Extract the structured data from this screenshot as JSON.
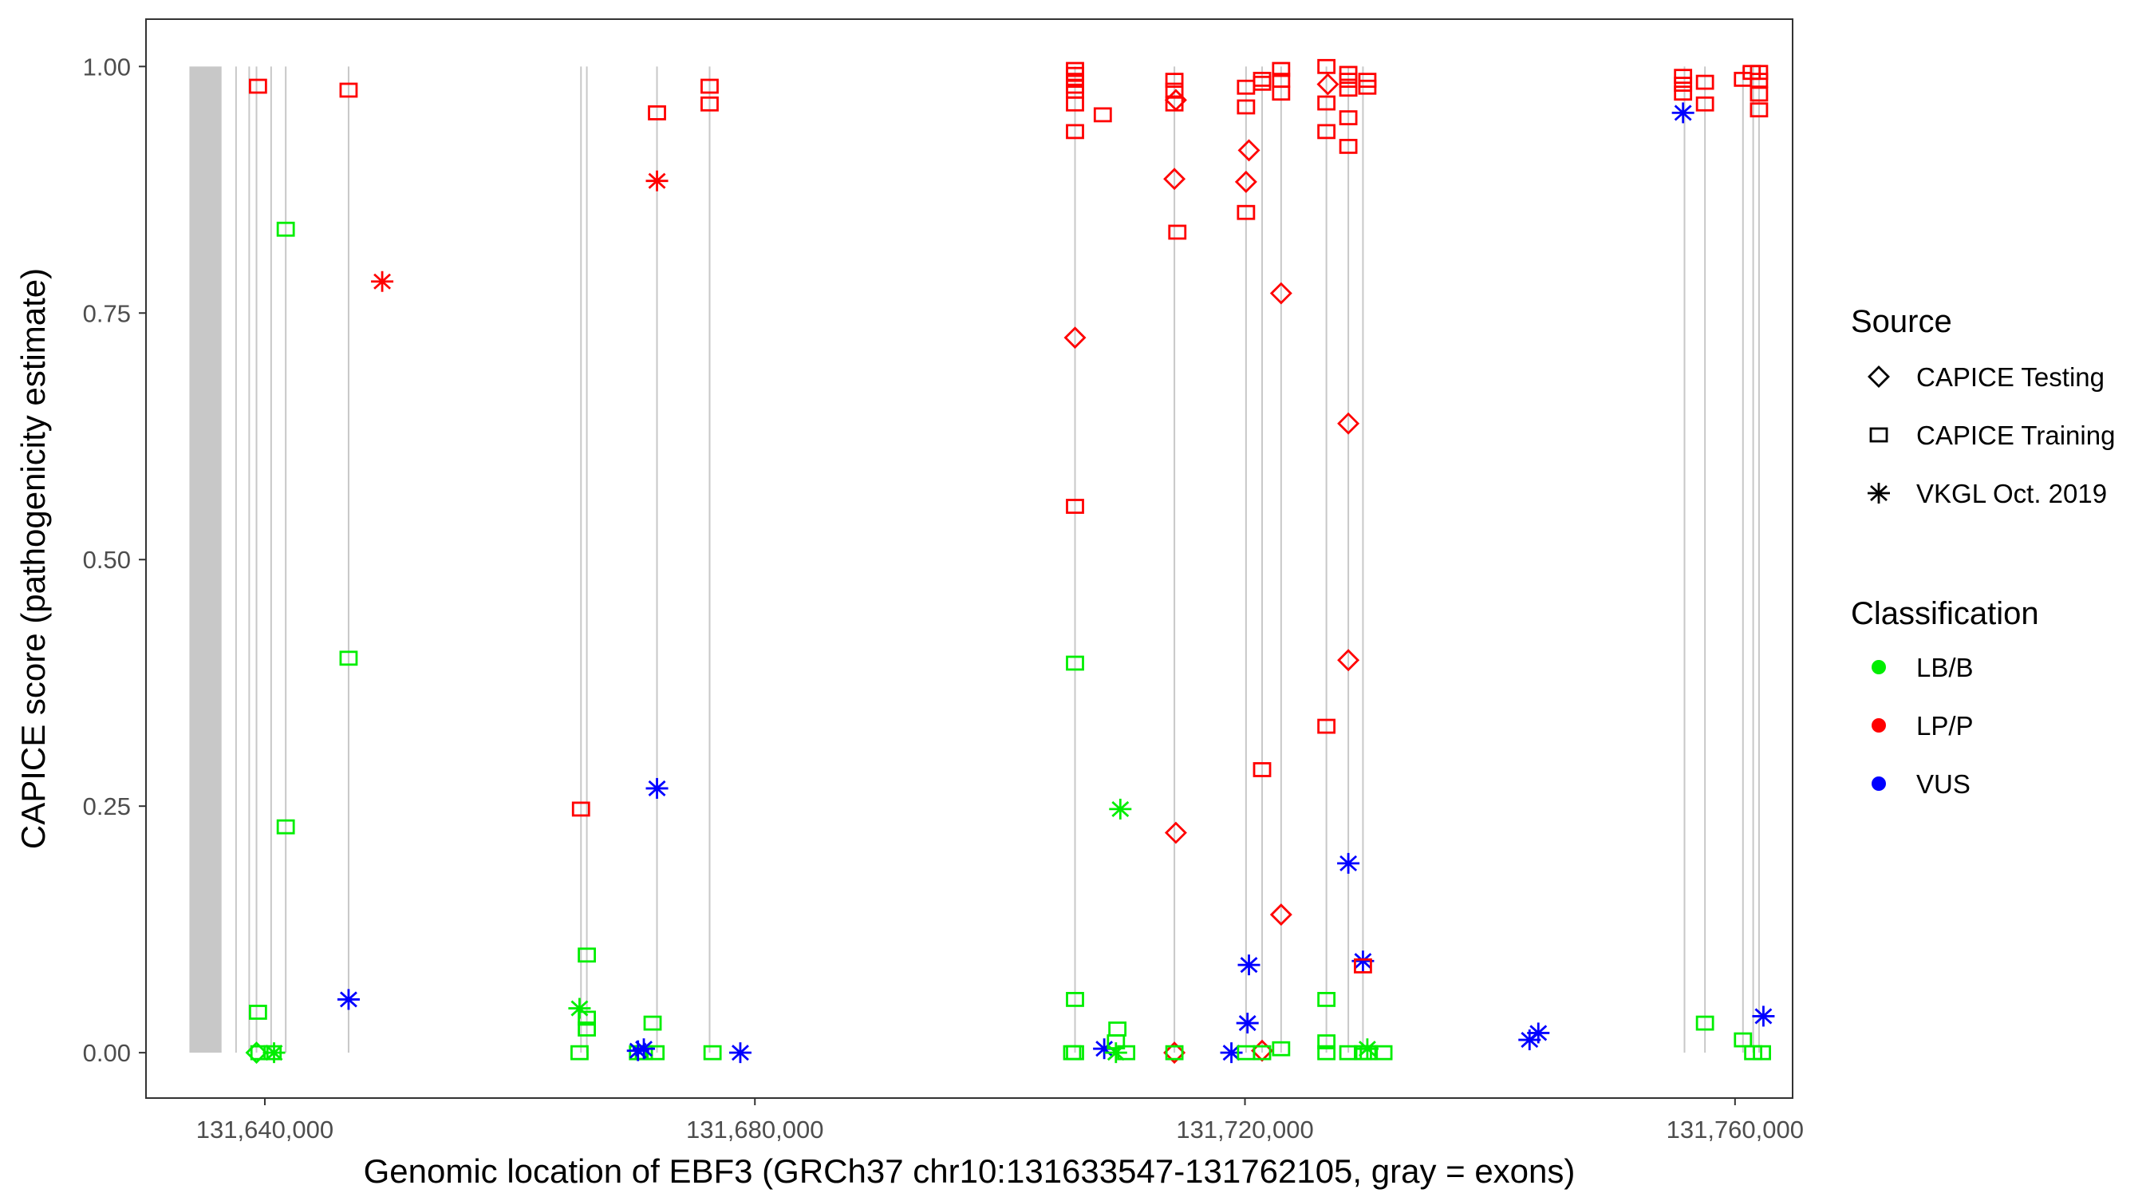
{
  "chart_data": {
    "type": "scatter",
    "xlabel": "Genomic location of EBF3 (GRCh37 chr10:131633547-131762105, gray = exons)",
    "ylabel": "CAPICE score (pathogenicity estimate)",
    "xlim": [
      131630300,
      131764700
    ],
    "ylim": [
      -0.046,
      1.048
    ],
    "x_ticks": [
      131640000,
      131680000,
      131720000,
      131760000
    ],
    "x_tick_labels": [
      "131,640,000",
      "131,680,000",
      "131,720,000",
      "131,760,000"
    ],
    "y_ticks": [
      0,
      0.25,
      0.5,
      0.75,
      1.0
    ],
    "y_tick_labels": [
      "0.00",
      "0.25",
      "0.50",
      "0.75",
      "1.00"
    ],
    "grid": false,
    "legend_placement": "right",
    "legend": {
      "source_title": "Source",
      "sources": [
        {
          "key": "Testing",
          "label": "CAPICE Testing",
          "shape": "diamond"
        },
        {
          "key": "Training",
          "label": "CAPICE Training",
          "shape": "square"
        },
        {
          "key": "VKGL",
          "label": "VKGL Oct. 2019",
          "shape": "asterisk"
        }
      ],
      "class_title": "Classification",
      "classes": [
        {
          "key": "LB/B",
          "label": "LB/B",
          "color": "#00ee00"
        },
        {
          "key": "LP/P",
          "label": "LP/P",
          "color": "#ff0000"
        },
        {
          "key": "VUS",
          "label": "VUS",
          "color": "#0000ff"
        }
      ]
    },
    "exon_band": [
      131633844,
      131636468
    ],
    "exon_lines": [
      131637650,
      131638724,
      131639320,
      131640513,
      131641706,
      131646836,
      131665805,
      131666282,
      131672009,
      131676303,
      131706128,
      131714241,
      131720087,
      131721399,
      131722950,
      131726648,
      131728437,
      131729630,
      131755876,
      131757546,
      131760648,
      131761483,
      131761960
    ],
    "points": [
      [
        131639440,
        0.98,
        "Training",
        "LP/P"
      ],
      [
        131639440,
        0.041,
        "Training",
        "LB/B"
      ],
      [
        131639320,
        0.0,
        "Testing",
        "LB/B"
      ],
      [
        131639559,
        0.0,
        "Training",
        "LB/B"
      ],
      [
        131640632,
        0.0,
        "Training",
        "LB/B"
      ],
      [
        131640752,
        0.0,
        "VKGL",
        "LB/B"
      ],
      [
        131641706,
        0.835,
        "Training",
        "LB/B"
      ],
      [
        131641706,
        0.229,
        "Training",
        "LB/B"
      ],
      [
        131646836,
        0.976,
        "Training",
        "LP/P"
      ],
      [
        131646836,
        0.4,
        "Training",
        "LB/B"
      ],
      [
        131646836,
        0.054,
        "VKGL",
        "VUS"
      ],
      [
        131649580,
        0.782,
        "VKGL",
        "LP/P"
      ],
      [
        131665805,
        0.247,
        "Training",
        "LP/P"
      ],
      [
        131665686,
        0.045,
        "VKGL",
        "LB/B"
      ],
      [
        131666282,
        0.099,
        "Training",
        "LB/B"
      ],
      [
        131666282,
        0.035,
        "Training",
        "LB/B"
      ],
      [
        131666282,
        0.024,
        "Training",
        "LB/B"
      ],
      [
        131665686,
        0.0,
        "Training",
        "LB/B"
      ],
      [
        131672009,
        0.953,
        "Training",
        "LP/P"
      ],
      [
        131672009,
        0.884,
        "VKGL",
        "LP/P"
      ],
      [
        131672009,
        0.268,
        "VKGL",
        "VUS"
      ],
      [
        131671651,
        0.03,
        "Training",
        "LB/B"
      ],
      [
        131670458,
        0.0,
        "Training",
        "LB/B"
      ],
      [
        131670935,
        0.0,
        "Training",
        "LB/B"
      ],
      [
        131671889,
        0.0,
        "Training",
        "LB/B"
      ],
      [
        131670458,
        0.002,
        "VKGL",
        "VUS"
      ],
      [
        131670935,
        0.004,
        "VKGL",
        "VUS"
      ],
      [
        131676303,
        0.98,
        "Training",
        "LP/P"
      ],
      [
        131676303,
        0.962,
        "Training",
        "LP/P"
      ],
      [
        131676542,
        0.0,
        "Training",
        "LB/B"
      ],
      [
        131678809,
        0.0,
        "VKGL",
        "VUS"
      ],
      [
        131706128,
        0.997,
        "Training",
        "LP/P"
      ],
      [
        131706128,
        0.992,
        "Training",
        "LP/P"
      ],
      [
        131706128,
        0.986,
        "Training",
        "LP/P"
      ],
      [
        131706128,
        0.98,
        "Training",
        "LP/P"
      ],
      [
        131706128,
        0.975,
        "Training",
        "LP/P"
      ],
      [
        131706128,
        0.962,
        "Training",
        "LP/P"
      ],
      [
        131706128,
        0.934,
        "Training",
        "LP/P"
      ],
      [
        131706128,
        0.725,
        "Testing",
        "LP/P"
      ],
      [
        131706128,
        0.554,
        "Training",
        "LP/P"
      ],
      [
        131706128,
        0.395,
        "Training",
        "LB/B"
      ],
      [
        131706128,
        0.054,
        "Training",
        "LB/B"
      ],
      [
        131706128,
        0.0,
        "Training",
        "LB/B"
      ],
      [
        131705900,
        0.0,
        "Training",
        "LB/B"
      ],
      [
        131708395,
        0.951,
        "Training",
        "LP/P"
      ],
      [
        131709588,
        0.024,
        "Training",
        "LB/B"
      ],
      [
        131709827,
        0.247,
        "VKGL",
        "LB/B"
      ],
      [
        131708514,
        0.004,
        "VKGL",
        "VUS"
      ],
      [
        131709469,
        0.011,
        "Training",
        "LB/B"
      ],
      [
        131710304,
        0.0,
        "Training",
        "LB/B"
      ],
      [
        131709469,
        0.0,
        "VKGL",
        "LB/B"
      ],
      [
        131714241,
        0.986,
        "Training",
        "LP/P"
      ],
      [
        131714241,
        0.976,
        "Training",
        "LP/P"
      ],
      [
        131714241,
        0.962,
        "Training",
        "LP/P"
      ],
      [
        131714360,
        0.966,
        "Testing",
        "LP/P"
      ],
      [
        131714241,
        0.886,
        "Testing",
        "LP/P"
      ],
      [
        131714480,
        0.832,
        "Training",
        "LP/P"
      ],
      [
        131714360,
        0.223,
        "Testing",
        "LP/P"
      ],
      [
        131714241,
        0.0,
        "Testing",
        "LP/P"
      ],
      [
        131714241,
        0.0,
        "Training",
        "LB/B"
      ],
      [
        131718894,
        0.0,
        "VKGL",
        "VUS"
      ],
      [
        131720087,
        0.979,
        "Training",
        "LP/P"
      ],
      [
        131720087,
        0.959,
        "Training",
        "LP/P"
      ],
      [
        131720325,
        0.915,
        "Testing",
        "LP/P"
      ],
      [
        131720087,
        0.883,
        "Testing",
        "LP/P"
      ],
      [
        131720087,
        0.852,
        "Training",
        "LP/P"
      ],
      [
        131720325,
        0.089,
        "VKGL",
        "VUS"
      ],
      [
        131720206,
        0.03,
        "VKGL",
        "VUS"
      ],
      [
        131720087,
        0.0,
        "Training",
        "LB/B"
      ],
      [
        131721399,
        0.987,
        "Training",
        "LP/P"
      ],
      [
        131721399,
        0.983,
        "Training",
        "LP/P"
      ],
      [
        131721399,
        0.287,
        "Training",
        "LP/P"
      ],
      [
        131721399,
        0.002,
        "Testing",
        "LP/P"
      ],
      [
        131721399,
        0.0,
        "Training",
        "LB/B"
      ],
      [
        131722950,
        0.997,
        "Training",
        "LP/P"
      ],
      [
        131722950,
        0.986,
        "Training",
        "LP/P"
      ],
      [
        131722950,
        0.973,
        "Training",
        "LP/P"
      ],
      [
        131722950,
        0.77,
        "Testing",
        "LP/P"
      ],
      [
        131722950,
        0.14,
        "Testing",
        "LP/P"
      ],
      [
        131722950,
        0.004,
        "Training",
        "LB/B"
      ],
      [
        131726648,
        1.0,
        "Training",
        "LP/P"
      ],
      [
        131726648,
        0.963,
        "Training",
        "LP/P"
      ],
      [
        131726648,
        0.934,
        "Training",
        "LP/P"
      ],
      [
        131726767,
        0.982,
        "Testing",
        "LP/P"
      ],
      [
        131726648,
        0.331,
        "Training",
        "LP/P"
      ],
      [
        131726648,
        0.054,
        "Training",
        "LB/B"
      ],
      [
        131726648,
        0.011,
        "Training",
        "LB/B"
      ],
      [
        131726648,
        0.0,
        "Training",
        "LB/B"
      ],
      [
        131728437,
        0.993,
        "Training",
        "LP/P"
      ],
      [
        131728437,
        0.986,
        "Training",
        "LP/P"
      ],
      [
        131728437,
        0.977,
        "Training",
        "LP/P"
      ],
      [
        131728437,
        0.948,
        "Training",
        "LP/P"
      ],
      [
        131728437,
        0.919,
        "Training",
        "LP/P"
      ],
      [
        131728437,
        0.638,
        "Testing",
        "LP/P"
      ],
      [
        131728437,
        0.398,
        "Testing",
        "LP/P"
      ],
      [
        131728437,
        0.192,
        "VKGL",
        "VUS"
      ],
      [
        131728437,
        0.0,
        "Training",
        "LB/B"
      ],
      [
        131729630,
        0.093,
        "VKGL",
        "VUS"
      ],
      [
        131729630,
        0.088,
        "Training",
        "LP/P"
      ],
      [
        131729988,
        0.986,
        "Training",
        "LP/P"
      ],
      [
        131729988,
        0.979,
        "Training",
        "LP/P"
      ],
      [
        131729988,
        0.004,
        "VKGL",
        "LB/B"
      ],
      [
        131730107,
        0.0,
        "Training",
        "LB/B"
      ],
      [
        131731300,
        0.0,
        "Training",
        "LB/B"
      ],
      [
        131729630,
        0.0,
        "Training",
        "LB/B"
      ],
      [
        131743230,
        0.013,
        "VKGL",
        "VUS"
      ],
      [
        131743946,
        0.02,
        "VKGL",
        "VUS"
      ],
      [
        131755757,
        0.99,
        "Training",
        "LP/P"
      ],
      [
        131755757,
        0.982,
        "Training",
        "LP/P"
      ],
      [
        131755757,
        0.973,
        "Training",
        "LP/P"
      ],
      [
        131755757,
        0.953,
        "VKGL",
        "VUS"
      ],
      [
        131757546,
        0.984,
        "Training",
        "LP/P"
      ],
      [
        131757546,
        0.962,
        "Training",
        "LP/P"
      ],
      [
        131757546,
        0.03,
        "Training",
        "LB/B"
      ],
      [
        131760648,
        0.987,
        "Training",
        "LP/P"
      ],
      [
        131761364,
        0.994,
        "Training",
        "LP/P"
      ],
      [
        131761960,
        0.994,
        "Training",
        "LP/P"
      ],
      [
        131761960,
        0.986,
        "Training",
        "LP/P"
      ],
      [
        131761960,
        0.972,
        "Training",
        "LP/P"
      ],
      [
        131761960,
        0.956,
        "Training",
        "LP/P"
      ],
      [
        131760648,
        0.013,
        "Training",
        "LB/B"
      ],
      [
        131761483,
        0.0,
        "Training",
        "LB/B"
      ],
      [
        131762198,
        0.0,
        "Training",
        "LB/B"
      ],
      [
        131762318,
        0.037,
        "VKGL",
        "VUS"
      ]
    ]
  }
}
